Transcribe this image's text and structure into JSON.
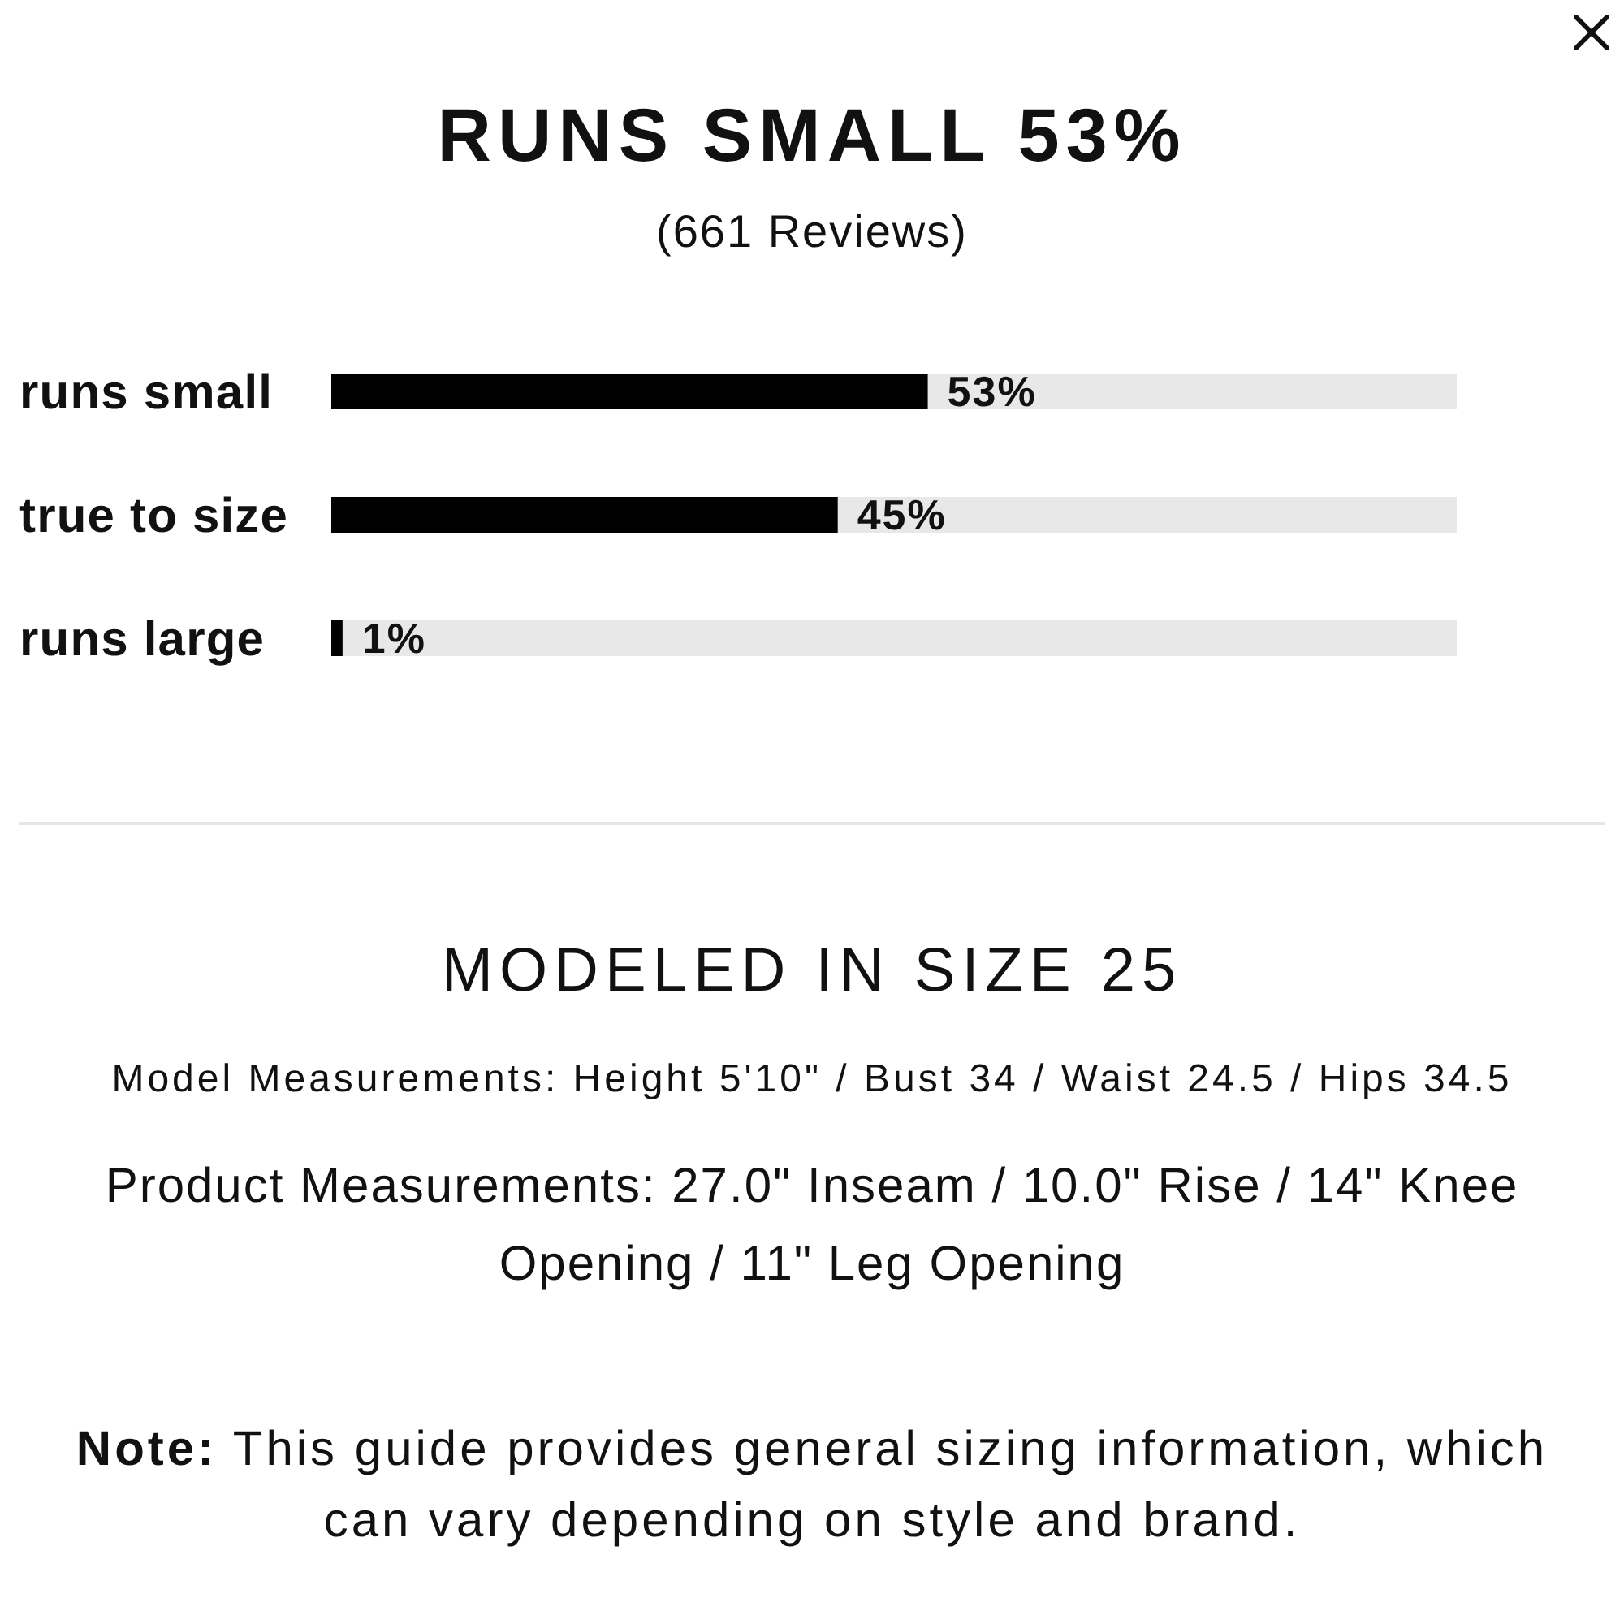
{
  "chart_data": {
    "type": "bar",
    "orientation": "horizontal",
    "title": "RUNS SMALL 53%",
    "subtitle": "(661 Reviews)",
    "categories": [
      "runs small",
      "true to size",
      "runs large"
    ],
    "values": [
      53,
      45,
      1
    ],
    "value_labels": [
      "53%",
      "45%",
      "1%"
    ],
    "color": "#000000",
    "xlim": [
      0,
      100
    ],
    "tick_labels": "y",
    "annotations": [
      "MODELED IN SIZE 25",
      "Model Measurements: Height 5'10\" / Bust 34 / Waist 24.5 / Hips 34.5",
      "Product Measurements: 27.0\" Inseam / 10.0\" Rise / 14\" Knee Opening / 11\" Leg Opening",
      "Note: This guide provides general sizing information, which can vary depending on style and brand."
    ]
  }
}
